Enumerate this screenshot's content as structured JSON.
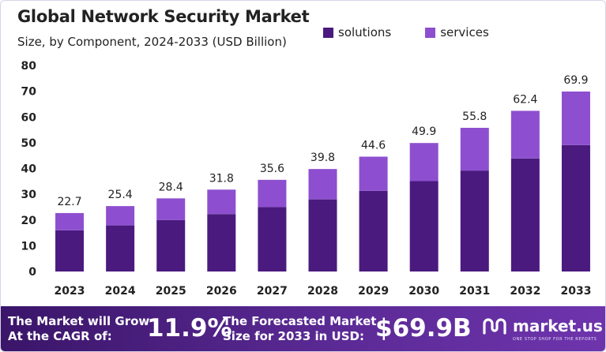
{
  "chart_data": {
    "type": "bar",
    "stacked": true,
    "title": "Global Network Security Market",
    "subtitle": "Size, by Component, 2024-2033 (USD Billion)",
    "categories": [
      "2023",
      "2024",
      "2025",
      "2026",
      "2027",
      "2028",
      "2029",
      "2030",
      "2031",
      "2032",
      "2033"
    ],
    "series": [
      {
        "name": "solutions",
        "color": "#4a1a7e",
        "values": [
          16.0,
          17.9,
          20.0,
          22.3,
          25.0,
          28.0,
          31.3,
          35.1,
          39.2,
          43.9,
          49.1
        ]
      },
      {
        "name": "services",
        "color": "#8d4fcf",
        "values": [
          6.7,
          7.5,
          8.4,
          9.5,
          10.6,
          11.8,
          13.3,
          14.8,
          16.6,
          18.5,
          20.8
        ]
      }
    ],
    "totals": [
      "22.7",
      "25.4",
      "28.4",
      "31.8",
      "35.6",
      "39.8",
      "44.6",
      "49.9",
      "55.8",
      "62.4",
      "69.9"
    ],
    "yticks": [
      "0",
      "10",
      "20",
      "30",
      "40",
      "50",
      "60",
      "70",
      "80"
    ],
    "ylim": [
      0,
      80
    ],
    "xlabel": "",
    "ylabel": "",
    "grid": false,
    "legend_position": "top-right"
  },
  "footer": {
    "cagr_line1": "The Market will Grow",
    "cagr_line2": "At the CAGR of:",
    "cagr_value": "11.9%",
    "forecast_line1": "The Forecasted Market",
    "forecast_line2": "Size for 2033 in USD:",
    "forecast_value": "$69.9B",
    "brand_name": "market.us",
    "brand_tagline": "ONE STOP SHOP FOR THE REPORTS",
    "brand_icon": "market-us-logo-icon"
  }
}
